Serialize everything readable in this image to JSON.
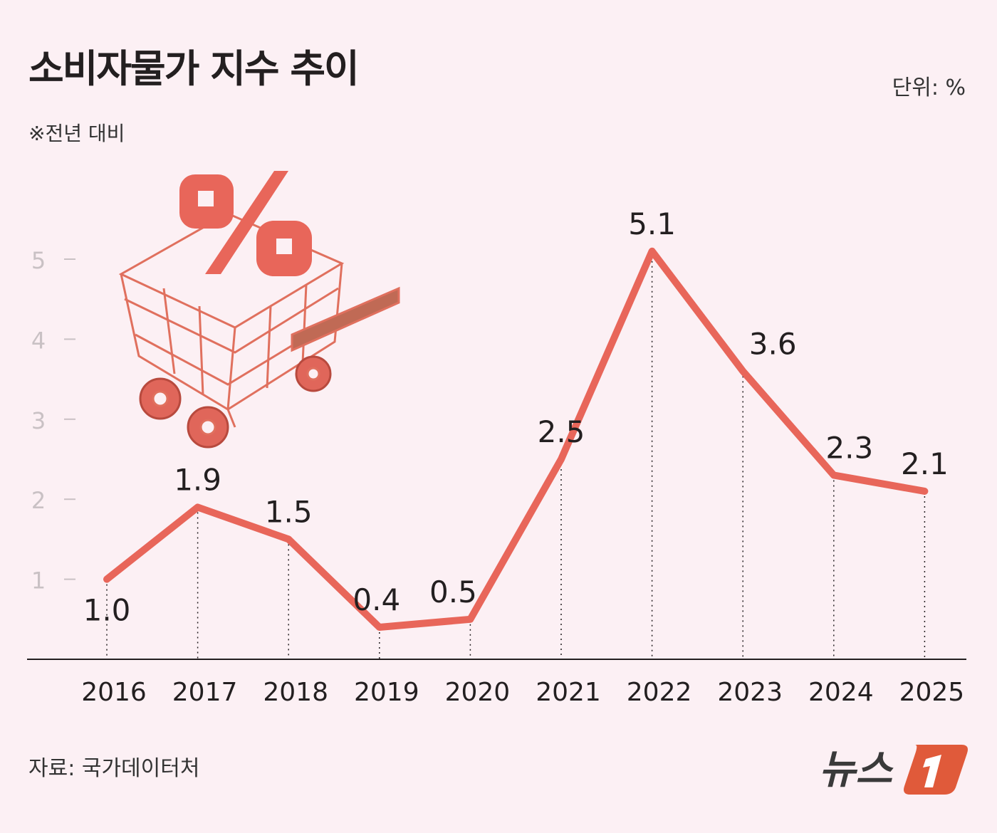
{
  "header": {
    "title": "소비자물가 지수 추이",
    "unit": "단위:  %",
    "note": "※전년 대비"
  },
  "footer": {
    "source": "자료: 국가데이터처",
    "logo": "뉴스1"
  },
  "colors": {
    "line": "#e8665a",
    "background": "#fcf0f4",
    "logo_accent": "#e05a3a"
  },
  "chart_data": {
    "type": "line",
    "title": "소비자물가 지수 추이",
    "categories": [
      "2016",
      "2017",
      "2018",
      "2019",
      "2020",
      "2021",
      "2022",
      "2023",
      "2024",
      "2025"
    ],
    "values": [
      1.0,
      1.9,
      1.5,
      0.4,
      0.5,
      2.5,
      5.1,
      3.6,
      2.3,
      2.1
    ],
    "value_labels": [
      "1.0",
      "1.9",
      "1.5",
      "0.4",
      "0.5",
      "2.5",
      "5.1",
      "3.6",
      "2.3",
      "2.1"
    ],
    "yticks": [
      1,
      2,
      3,
      4,
      5
    ],
    "ylim": [
      0,
      5.5
    ],
    "grid": false,
    "unit": "%"
  }
}
